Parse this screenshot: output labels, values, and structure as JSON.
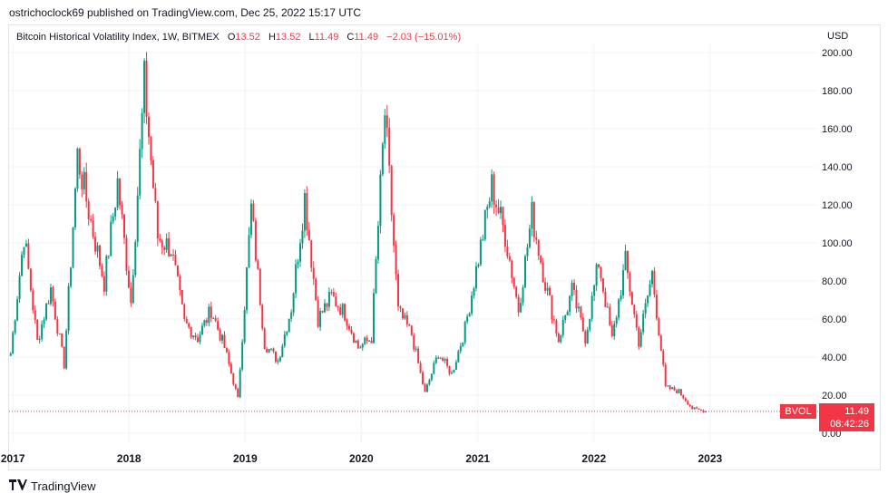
{
  "header": {
    "attribution": "ostrichoclock69 published on TradingView.com, Dec 25, 2022 15:17 UTC"
  },
  "legend": {
    "title": "Bitcoin Historical Volatility Index, 1W, BITMEX",
    "open_label": "O",
    "open": "13.52",
    "high_label": "H",
    "high": "13.52",
    "low_label": "L",
    "low": "11.49",
    "close_label": "C",
    "close": "11.49",
    "change": "−2.03 (−15.01%)"
  },
  "axis": {
    "currency": "USD"
  },
  "badge": {
    "symbol": "BVOL",
    "price": "11.49",
    "countdown": "08:42:26"
  },
  "footer": {
    "brand": "TradingView",
    "logo_icon": "tradingview-logo-icon"
  },
  "colors": {
    "up": "#089981",
    "down": "#f23645",
    "grid": "#f0f3fa",
    "text": "#131722"
  },
  "chart_data": {
    "type": "candlestick",
    "title": "Bitcoin Historical Volatility Index, 1W, BITMEX",
    "ylabel": "USD",
    "ylim": [
      0,
      200
    ],
    "yticks": [
      0,
      20,
      40,
      60,
      80,
      100,
      120,
      140,
      160,
      180,
      200
    ],
    "ytick_labels": [
      "0.00",
      "20.00",
      "40.00",
      "60.00",
      "80.00",
      "100.00",
      "120.00",
      "140.00",
      "160.00",
      "180.00",
      "200.00"
    ],
    "xlim": [
      "2016-12-20",
      "2023-12-01"
    ],
    "xticks": [
      "2017-01-01",
      "2018-01-01",
      "2019-01-01",
      "2020-01-01",
      "2021-01-01",
      "2022-01-01",
      "2023-01-01"
    ],
    "xtick_labels": [
      "2017",
      "2018",
      "2019",
      "2020",
      "2021",
      "2022",
      "2023"
    ],
    "last_price": 11.49,
    "series": {
      "dates": [
        "2016-12-25",
        "2017-02-05",
        "2017-03-19",
        "2017-04-30",
        "2017-06-11",
        "2017-07-23",
        "2017-09-03",
        "2017-10-15",
        "2017-11-26",
        "2018-01-07",
        "2018-02-18",
        "2018-04-01",
        "2018-05-13",
        "2018-06-24",
        "2018-08-05",
        "2018-09-16",
        "2018-10-28",
        "2018-12-09",
        "2019-01-20",
        "2019-03-03",
        "2019-04-14",
        "2019-05-26",
        "2019-07-07",
        "2019-08-18",
        "2019-09-29",
        "2019-11-10",
        "2019-12-22",
        "2020-02-02",
        "2020-03-15",
        "2020-04-26",
        "2020-06-07",
        "2020-07-19",
        "2020-08-30",
        "2020-10-11",
        "2020-11-22",
        "2021-01-03",
        "2021-02-14",
        "2021-03-28",
        "2021-05-09",
        "2021-06-20",
        "2021-08-01",
        "2021-09-12",
        "2021-10-24",
        "2021-12-05",
        "2022-01-16",
        "2022-02-27",
        "2022-04-10",
        "2022-05-22",
        "2022-07-03",
        "2022-08-14",
        "2022-09-25",
        "2022-11-06",
        "2022-12-18"
      ],
      "values": [
        42,
        104,
        48,
        76,
        36,
        146,
        111,
        79,
        132,
        69,
        184,
        103,
        97,
        58,
        50,
        65,
        45,
        18,
        118,
        47,
        38,
        66,
        124,
        60,
        72,
        63,
        45,
        50,
        168,
        64,
        52,
        21,
        42,
        31,
        55,
        92,
        130,
        104,
        65,
        115,
        79,
        49,
        75,
        50,
        90,
        49,
        90,
        48,
        84,
        24,
        22,
        13,
        11.49
      ]
    }
  }
}
